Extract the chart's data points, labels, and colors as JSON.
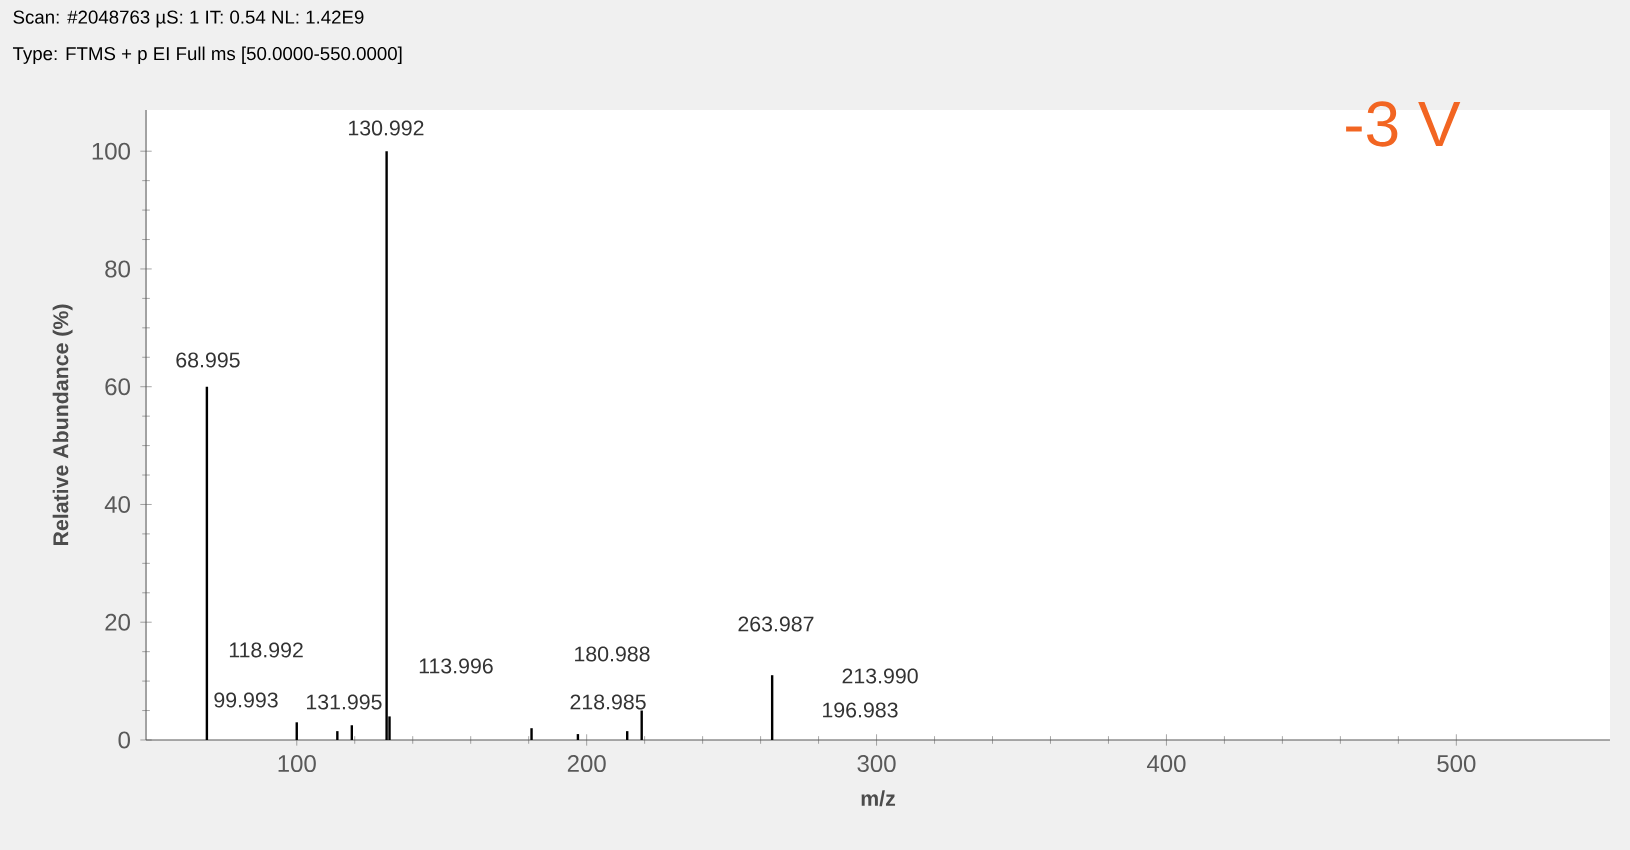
{
  "chart_data": {
    "type": "bar",
    "title": "Scan: #2048763   µS: 1   IT: 0.54   NL: 1.42E9",
    "subtitle": "Type: FTMS + p EI Full ms [50.0000-550.0000]",
    "xlabel": "m/z",
    "ylabel": "Relative Abundance (%)",
    "x": [
      68.995,
      99.993,
      113.996,
      118.992,
      130.992,
      131.995,
      180.988,
      196.983,
      213.99,
      218.985,
      263.987
    ],
    "series": [
      {
        "color": "#000000",
        "values": [
          60,
          3,
          1.5,
          2.5,
          100,
          4,
          2,
          1,
          1.5,
          5,
          11
        ]
      }
    ],
    "xlim": [
      48,
      553
    ],
    "ylim": [
      0,
      107
    ],
    "xticks": [
      100,
      200,
      300,
      400,
      500
    ],
    "yticks": [
      0,
      20,
      40,
      60,
      80,
      100
    ],
    "annotations": [
      "68.995",
      "130.992",
      "118.992",
      "99.993",
      "113.996",
      "131.995",
      "180.988",
      "218.985",
      "263.987",
      "213.990",
      "196.983",
      "-3 V"
    ]
  }
}
